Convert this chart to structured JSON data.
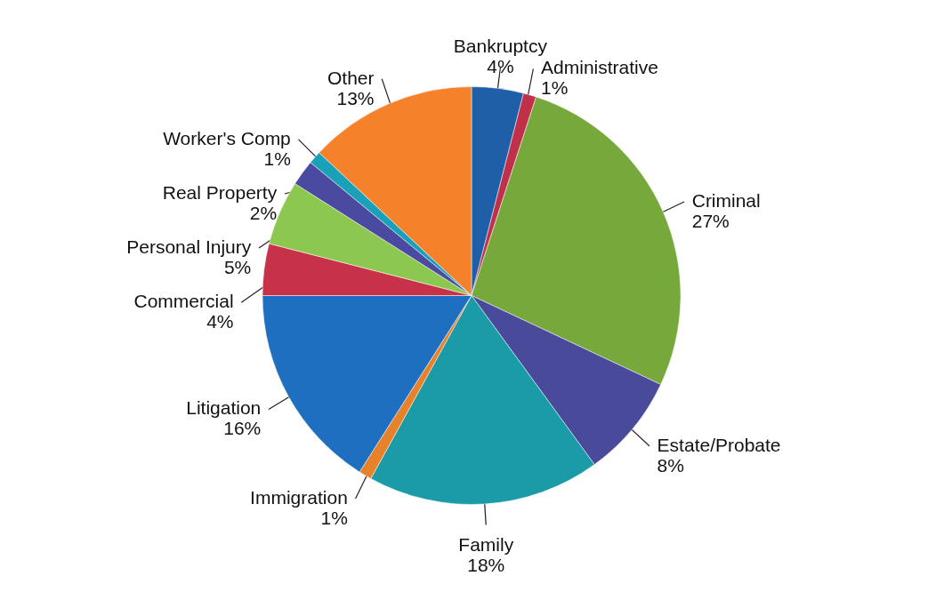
{
  "chart_data": {
    "type": "pie",
    "categories": [
      "Bankruptcy",
      "Administrative",
      "Criminal",
      "Estate/Probate",
      "Family",
      "Immigration",
      "Litigation",
      "Commercial",
      "Personal Injury",
      "Real Property",
      "Worker's Comp",
      "Other"
    ],
    "values": [
      4,
      1,
      27,
      8,
      18,
      1,
      16,
      4,
      5,
      2,
      1,
      13
    ],
    "value_labels": [
      "4%",
      "1%",
      "27%",
      "8%",
      "18%",
      "1%",
      "16%",
      "4%",
      "5%",
      "2%",
      "1%",
      "13%"
    ],
    "colors": [
      "#1f5fa8",
      "#c0304a",
      "#77a83c",
      "#4a4a9a",
      "#1b9aa8",
      "#e8822a",
      "#1f6fc0",
      "#c83248",
      "#8cc850",
      "#4a4aa0",
      "#1aa0b8",
      "#f5822a"
    ],
    "legend": false
  }
}
